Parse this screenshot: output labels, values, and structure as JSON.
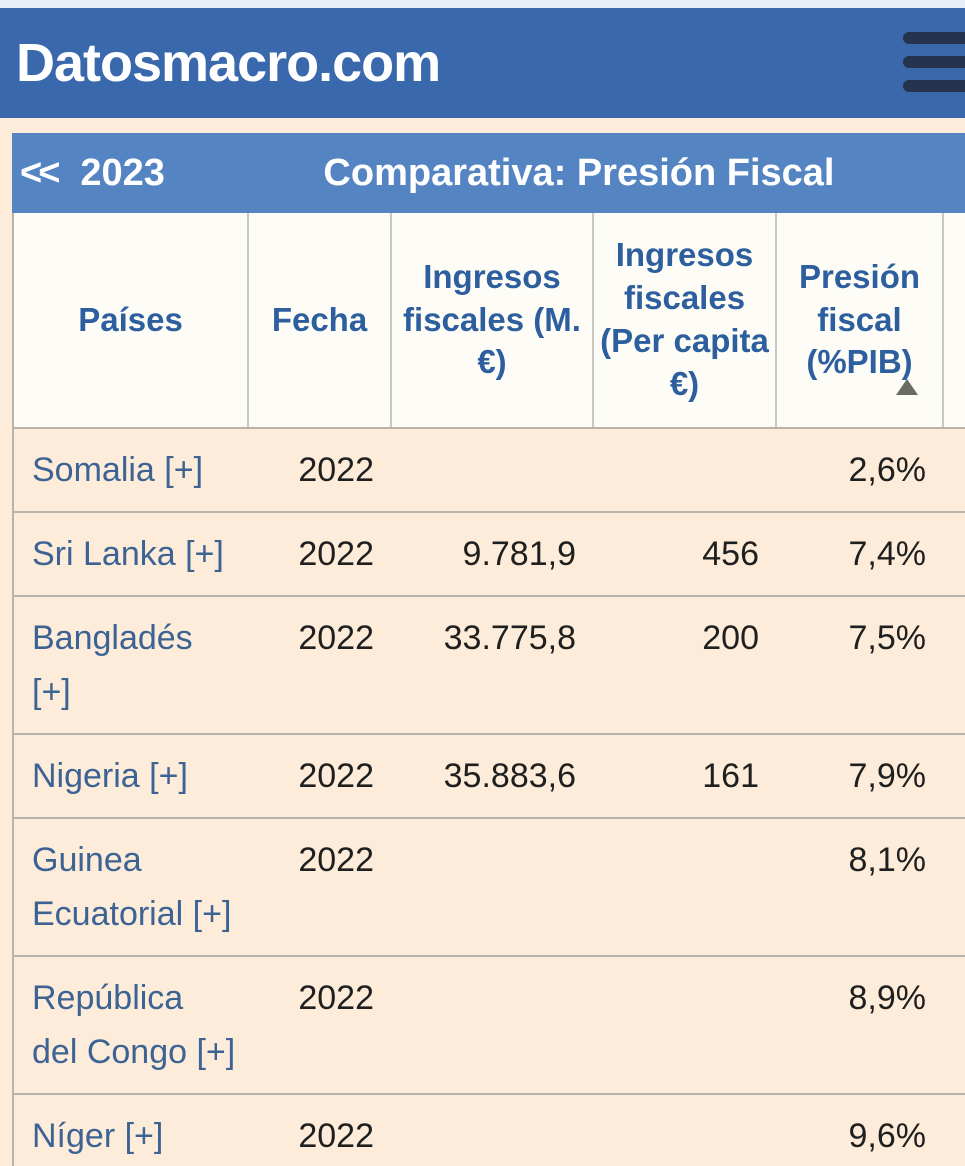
{
  "header": {
    "site_title": "Datosmacro.com"
  },
  "subheader": {
    "back_arrows": "<<",
    "year": "2023",
    "title": "Comparativa: Presión Fiscal"
  },
  "table": {
    "columns": [
      "Países",
      "Fecha",
      "Ingresos fiscales (M. €)",
      "Ingresos fiscales (Per capita €)",
      "Presión fiscal (%PIB)"
    ],
    "sort": {
      "column": "Presión fiscal (%PIB)",
      "direction": "ascending"
    },
    "rows": [
      {
        "country": "Somalia [+]",
        "fecha": "2022",
        "ingresos_m": "",
        "per_capita": "",
        "presion": "2,6%"
      },
      {
        "country": "Sri Lanka [+]",
        "fecha": "2022",
        "ingresos_m": "9.781,9",
        "per_capita": "456",
        "presion": "7,4%"
      },
      {
        "country": "Bangladés [+]",
        "fecha": "2022",
        "ingresos_m": "33.775,8",
        "per_capita": "200",
        "presion": "7,5%"
      },
      {
        "country": "Nigeria [+]",
        "fecha": "2022",
        "ingresos_m": "35.883,6",
        "per_capita": "161",
        "presion": "7,9%"
      },
      {
        "country": "Guinea Ecuatorial [+]",
        "fecha": "2022",
        "ingresos_m": "",
        "per_capita": "",
        "presion": "8,1%"
      },
      {
        "country": "República del Congo [+]",
        "fecha": "2022",
        "ingresos_m": "",
        "per_capita": "",
        "presion": "8,9%"
      },
      {
        "country": "Níger [+]",
        "fecha": "2022",
        "ingresos_m": "",
        "per_capita": "",
        "presion": "9,6%"
      }
    ]
  },
  "colors": {
    "main_header_bg": "#3a68ac",
    "sub_header_bg": "#5584c2",
    "page_cream": "#fcecd9",
    "header_cell_bg": "#fdfcf6",
    "header_text_blue": "#2d5f9e",
    "link_blue": "#3c6394",
    "separator_gray": "#b8b4ac",
    "hamburger_navy": "#24344e",
    "sort_triangle_gray": "#6b6b66"
  }
}
